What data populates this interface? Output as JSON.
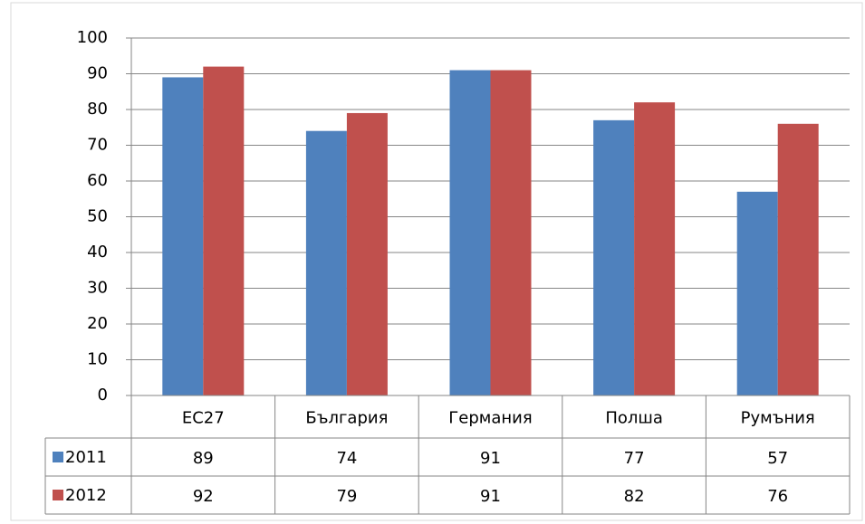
{
  "chart_data": {
    "type": "bar",
    "categories": [
      "ЕС27",
      "България",
      "Германия",
      "Полша",
      "Румъния"
    ],
    "series": [
      {
        "name": "2011",
        "color": "#4f81bd",
        "values": [
          89,
          74,
          91,
          77,
          57
        ]
      },
      {
        "name": "2012",
        "color": "#c0504d",
        "values": [
          92,
          79,
          91,
          82,
          76
        ]
      }
    ],
    "ylim": [
      0,
      100
    ],
    "yticks": [
      0,
      10,
      20,
      30,
      40,
      50,
      60,
      70,
      80,
      90,
      100
    ],
    "grid": true,
    "data_table": true
  }
}
